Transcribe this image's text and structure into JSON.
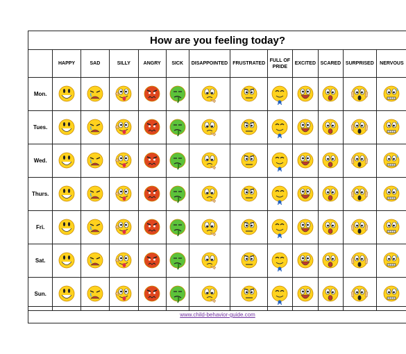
{
  "title": "How are you feeling today?",
  "emotions": [
    {
      "label": "HAPPY",
      "icon": "happy-face-icon"
    },
    {
      "label": "SAD",
      "icon": "sad-face-icon"
    },
    {
      "label": "SILLY",
      "icon": "silly-face-icon"
    },
    {
      "label": "ANGRY",
      "icon": "angry-face-icon"
    },
    {
      "label": "SICK",
      "icon": "sick-face-icon"
    },
    {
      "label": "DISAPPOINTED",
      "icon": "disappointed-face-icon"
    },
    {
      "label": "FRUSTRATED",
      "icon": "frustrated-face-icon"
    },
    {
      "label": "FULL OF PRIDE",
      "icon": "proud-face-icon"
    },
    {
      "label": "EXCITED",
      "icon": "excited-face-icon"
    },
    {
      "label": "SCARED",
      "icon": "scared-face-icon"
    },
    {
      "label": "SURPRISED",
      "icon": "surprised-face-icon"
    },
    {
      "label": "NERVOUS",
      "icon": "nervous-face-icon"
    }
  ],
  "days": [
    "Mon.",
    "Tues.",
    "Wed.",
    "Thurs.",
    "Fri.",
    "Sat.",
    "Sun."
  ],
  "footer_link": "www.child-behavior-guide.com",
  "colors": {
    "face_yellow": "#ffd21e",
    "face_outline": "#c98a00",
    "angry_red": "#e0461e",
    "sick_green": "#5cc23a",
    "link_purple": "#7030a0",
    "ribbon_blue": "#1f5fbf"
  }
}
